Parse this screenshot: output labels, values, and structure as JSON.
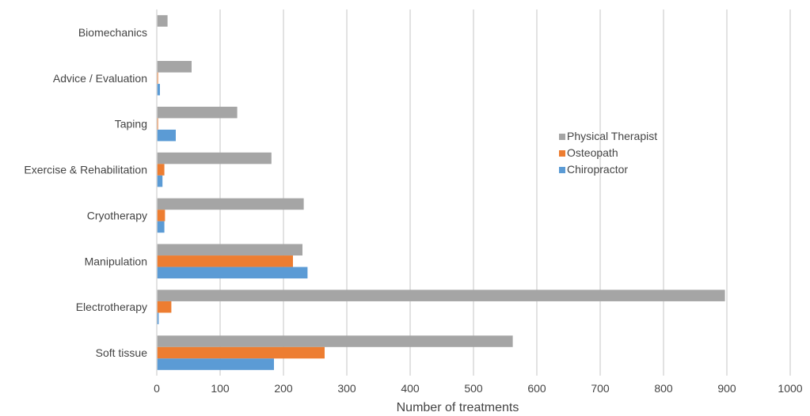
{
  "chart_data": {
    "type": "bar",
    "orientation": "horizontal",
    "title": "",
    "xlabel": "Number of treatments",
    "ylabel": "",
    "xlim": [
      0,
      1000
    ],
    "x_ticks": [
      "0",
      "100",
      "200",
      "300",
      "400",
      "500",
      "600",
      "700",
      "800",
      "900",
      "1000"
    ],
    "grid": "vertical",
    "legend_position": "right",
    "categories": [
      "Soft tissue",
      "Electrotherapy",
      "Manipulation",
      "Cryotherapy",
      "Exercise & Rehabilitation",
      "Taping",
      "Advice / Evaluation",
      "Biomechanics"
    ],
    "series": [
      {
        "name": "Physical Therapist",
        "color": "#a5a5a5",
        "values": [
          562,
          897,
          230,
          232,
          181,
          127,
          55,
          17
        ]
      },
      {
        "name": "Osteopath",
        "color": "#ed7d31",
        "values": [
          265,
          23,
          215,
          13,
          12,
          2,
          2,
          0
        ]
      },
      {
        "name": "Chiropractor",
        "color": "#5b9bd5",
        "values": [
          185,
          3,
          238,
          12,
          9,
          30,
          5,
          0
        ]
      }
    ]
  }
}
